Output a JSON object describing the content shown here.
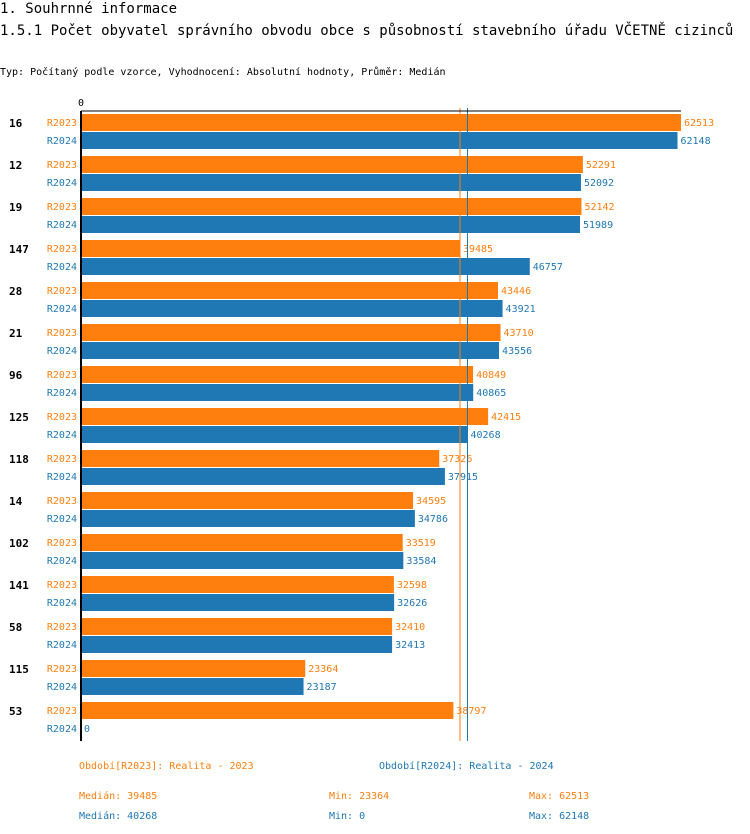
{
  "heading": {
    "section": "1. Souhrnné informace",
    "title": "1.5.1 Počet obyvatel správního obvodu obce s působností stavebního úřadu VČETNĚ cizinců",
    "subtitle": "Typ: Počítaný podle vzorce, Vyhodnocení: Absolutní hodnoty, Průměr: Medián"
  },
  "colors": {
    "r2023": "#ff7f0e",
    "r2024": "#1f77b4",
    "axis": "#000000"
  },
  "chart_data": {
    "type": "bar",
    "orientation": "horizontal",
    "axis_zero_label": "0",
    "x_min": 0,
    "x_max": 62513,
    "categories": [
      "16",
      "12",
      "19",
      "147",
      "28",
      "21",
      "96",
      "125",
      "118",
      "14",
      "102",
      "141",
      "58",
      "115",
      "53"
    ],
    "series": [
      {
        "name": "R2023",
        "values": [
          62513,
          52291,
          52142,
          39485,
          43446,
          43710,
          40849,
          42415,
          37326,
          34595,
          33519,
          32598,
          32410,
          23364,
          38797
        ]
      },
      {
        "name": "R2024",
        "values": [
          62148,
          52092,
          51989,
          46757,
          43921,
          43556,
          40865,
          40268,
          37915,
          34786,
          33584,
          32626,
          32413,
          23187,
          0
        ]
      }
    ],
    "reference_lines": [
      {
        "series": "R2023",
        "label": "Medián",
        "value": 39485
      },
      {
        "series": "R2024",
        "label": "Medián",
        "value": 40268
      }
    ]
  },
  "legend": {
    "r2023": "Období[R2023]: Realita - 2023",
    "r2024": "Období[R2024]: Realita - 2024"
  },
  "stats": {
    "r2023": {
      "median": "Medián: 39485",
      "min": "Min: 23364",
      "max": "Max: 62513"
    },
    "r2024": {
      "median": "Medián: 40268",
      "min": "Min: 0",
      "max": "Max: 62148"
    }
  }
}
